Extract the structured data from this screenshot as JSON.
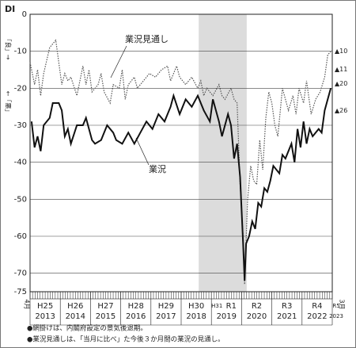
{
  "chart_data": {
    "type": "line",
    "y_label": "DI",
    "y_up": "「良」→",
    "y_down": "←「悪」",
    "xlim": [
      2013.25,
      2023.25
    ],
    "ylim": [
      -75,
      0
    ],
    "yticks": [
      0,
      -10,
      -20,
      -30,
      -40,
      -50,
      -60,
      -70,
      -75
    ],
    "xticks": [
      2013.25,
      2014.25,
      2015.25,
      2016.25,
      2017.25,
      2018.25,
      2019.25,
      2020.25,
      2021.25,
      2022.25,
      2023.25
    ],
    "era_labels": [
      "H25",
      "H26",
      "H27",
      "H28",
      "H29",
      "H30",
      "R1",
      "R2",
      "R3",
      "R4",
      "R5"
    ],
    "year_labels": [
      "2013",
      "2014",
      "2015",
      "2016",
      "2017",
      "2018",
      "2019",
      "2020",
      "2021",
      "2022",
      "2023"
    ],
    "extra_era_label": "H31",
    "start_month": "4月",
    "end_month": "3月",
    "shade": [
      2018.83,
      2020.42
    ],
    "grid": true,
    "series": [
      {
        "name": "業況見通し",
        "color": "#555555",
        "dash": true,
        "x": [
          2013.25,
          2013.4,
          2013.5,
          2013.6,
          2013.7,
          2013.9,
          2014.0,
          2014.1,
          2014.2,
          2014.3,
          2014.4,
          2014.5,
          2014.6,
          2014.8,
          2015.0,
          2015.1,
          2015.2,
          2015.3,
          2015.5,
          2015.6,
          2015.7,
          2015.9,
          2016.0,
          2016.2,
          2016.3,
          2016.4,
          2016.5,
          2016.7,
          2016.8,
          2017.0,
          2017.2,
          2017.4,
          2017.6,
          2017.8,
          2017.9,
          2018.1,
          2018.2,
          2018.4,
          2018.6,
          2018.8,
          2018.9,
          2019.0,
          2019.1,
          2019.3,
          2019.5,
          2019.6,
          2019.7,
          2019.9,
          2020.0,
          2020.1,
          2020.2,
          2020.3,
          2020.35,
          2020.45,
          2020.55,
          2020.65,
          2020.75,
          2020.85,
          2020.95,
          2021.05,
          2021.15,
          2021.25,
          2021.35,
          2021.45,
          2021.6,
          2021.7,
          2021.8,
          2021.95,
          2022.05,
          2022.15,
          2022.3,
          2022.4,
          2022.55,
          2022.7,
          2022.85,
          2023.0,
          2023.1,
          2023.2
        ],
        "values": [
          -13,
          -19,
          -15,
          -22,
          -16,
          -9,
          -8,
          -7,
          -13,
          -19,
          -16,
          -18,
          -17,
          -22,
          -14,
          -19,
          -15,
          -21,
          -19,
          -16,
          -21,
          -24,
          -19,
          -20,
          -15,
          -23,
          -19,
          -17,
          -20,
          -18,
          -16,
          -17,
          -15,
          -14,
          -18,
          -14,
          -17,
          -19,
          -17,
          -20,
          -18,
          -22,
          -20,
          -22,
          -19,
          -22,
          -23,
          -20,
          -23,
          -24,
          -46,
          -60,
          -73,
          -50,
          -41,
          -45,
          -46,
          -34,
          -42,
          -28,
          -21,
          -24,
          -30,
          -33,
          -20,
          -23,
          -26,
          -22,
          -27,
          -20,
          -24,
          -18,
          -27,
          -23,
          -21,
          -17,
          -11,
          -10
        ]
      },
      {
        "name": "業況",
        "color": "#111111",
        "dash": false,
        "x": [
          2013.3,
          2013.4,
          2013.5,
          2013.6,
          2013.7,
          2013.9,
          2014.0,
          2014.2,
          2014.3,
          2014.4,
          2014.5,
          2014.6,
          2014.8,
          2015.0,
          2015.1,
          2015.3,
          2015.4,
          2015.6,
          2015.8,
          2016.0,
          2016.1,
          2016.3,
          2016.5,
          2016.7,
          2016.9,
          2017.1,
          2017.3,
          2017.5,
          2017.7,
          2017.9,
          2018.0,
          2018.2,
          2018.4,
          2018.6,
          2018.8,
          2019.0,
          2019.2,
          2019.3,
          2019.5,
          2019.6,
          2019.8,
          2019.9,
          2020.0,
          2020.1,
          2020.2,
          2020.3,
          2020.35,
          2020.4,
          2020.5,
          2020.6,
          2020.7,
          2020.8,
          2020.9,
          2021.0,
          2021.1,
          2021.2,
          2021.3,
          2021.5,
          2021.6,
          2021.7,
          2021.9,
          2022.0,
          2022.1,
          2022.2,
          2022.3,
          2022.4,
          2022.5,
          2022.6,
          2022.8,
          2022.9,
          2023.0,
          2023.2
        ],
        "values": [
          -29,
          -36,
          -33,
          -37,
          -30,
          -28,
          -24,
          -24,
          -26,
          -33,
          -31,
          -35,
          -30,
          -30,
          -28,
          -34,
          -35,
          -34,
          -30,
          -32,
          -34,
          -35,
          -32,
          -35,
          -32,
          -29,
          -31,
          -27,
          -29,
          -25,
          -22,
          -27,
          -23,
          -25,
          -22,
          -26,
          -29,
          -23,
          -29,
          -33,
          -27,
          -30,
          -39,
          -35,
          -44,
          -62,
          -72,
          -62,
          -60,
          -56,
          -58,
          -51,
          -52,
          -47,
          -48,
          -45,
          -41,
          -43,
          -38,
          -39,
          -35,
          -40,
          -31,
          -36,
          -29,
          -35,
          -31,
          -33,
          -31,
          -32,
          -26,
          -20
        ]
      }
    ],
    "end_labels": [
      {
        "text": "▲10",
        "value": -10
      },
      {
        "text": "▲11",
        "value": -11
      },
      {
        "text": "▲20",
        "value": -20
      },
      {
        "text": "▲26",
        "value": -26
      }
    ],
    "notes": [
      "●網掛けは、内閣府設定の景気後退期。",
      "●業況見通しは、「当月に比べ」た今後３か月間の業況の見通し。"
    ]
  }
}
